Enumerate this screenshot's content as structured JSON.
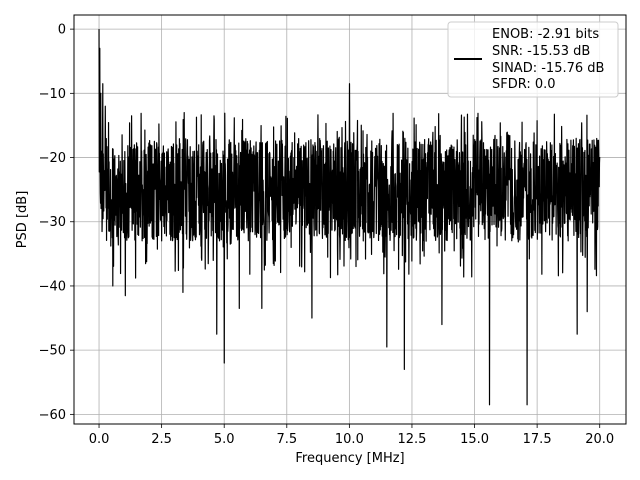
{
  "chart_data": {
    "type": "line",
    "title": "",
    "xlabel": "Frequency [MHz]",
    "ylabel": "PSD [dB]",
    "xlim": [
      -1.0,
      21.05
    ],
    "ylim": [
      -61.5,
      2.2
    ],
    "xticks": [
      0.0,
      2.5,
      5.0,
      7.5,
      10.0,
      12.5,
      15.0,
      17.5,
      20.0
    ],
    "xtick_labels": [
      "0.0",
      "2.5",
      "5.0",
      "7.5",
      "10.0",
      "12.5",
      "15.0",
      "17.5",
      "20.0"
    ],
    "yticks": [
      0,
      -10,
      -20,
      -30,
      -40,
      -50,
      -60
    ],
    "ytick_labels": [
      "0",
      "−10",
      "−20",
      "−30",
      "−40",
      "−50",
      "−60"
    ],
    "grid": true,
    "legend_position": "top-right",
    "series_color": "#000000",
    "series": [
      {
        "name": "ENOB: -2.91 bits\nSNR: -15.53 dB\nSINAD: -15.76 dB\nSFDR: 0.0",
        "legend_lines": [
          "ENOB: -2.91 bits",
          "SNR: -15.53 dB",
          "SINAD: -15.76 dB",
          "SFDR: 0.0"
        ],
        "x_range": [
          0.0,
          20.0
        ],
        "points": 2000,
        "envelope_mean": -25.0,
        "envelope_upper": -17.0,
        "envelope_lower": -33.0,
        "peaks": [
          {
            "x": 0.0,
            "y": 0.0
          },
          {
            "x": 0.03,
            "y": -3.0
          },
          {
            "x": 0.07,
            "y": -10.0
          },
          {
            "x": 0.15,
            "y": -8.5
          },
          {
            "x": 0.25,
            "y": -12.0
          },
          {
            "x": 1.3,
            "y": -13.5
          },
          {
            "x": 3.4,
            "y": -13.0
          },
          {
            "x": 10.0,
            "y": -8.5
          },
          {
            "x": 16.9,
            "y": -14.5
          }
        ],
        "dips": [
          {
            "x": 0.55,
            "y": -40.0
          },
          {
            "x": 1.05,
            "y": -41.5
          },
          {
            "x": 3.35,
            "y": -41.0
          },
          {
            "x": 4.7,
            "y": -47.5
          },
          {
            "x": 5.0,
            "y": -52.0
          },
          {
            "x": 5.6,
            "y": -43.5
          },
          {
            "x": 6.5,
            "y": -43.5
          },
          {
            "x": 8.5,
            "y": -45.0
          },
          {
            "x": 11.5,
            "y": -49.5
          },
          {
            "x": 12.2,
            "y": -53.0
          },
          {
            "x": 13.7,
            "y": -46.0
          },
          {
            "x": 15.6,
            "y": -58.5
          },
          {
            "x": 17.1,
            "y": -58.5
          },
          {
            "x": 19.1,
            "y": -47.5
          },
          {
            "x": 19.5,
            "y": -44.0
          }
        ]
      }
    ]
  }
}
